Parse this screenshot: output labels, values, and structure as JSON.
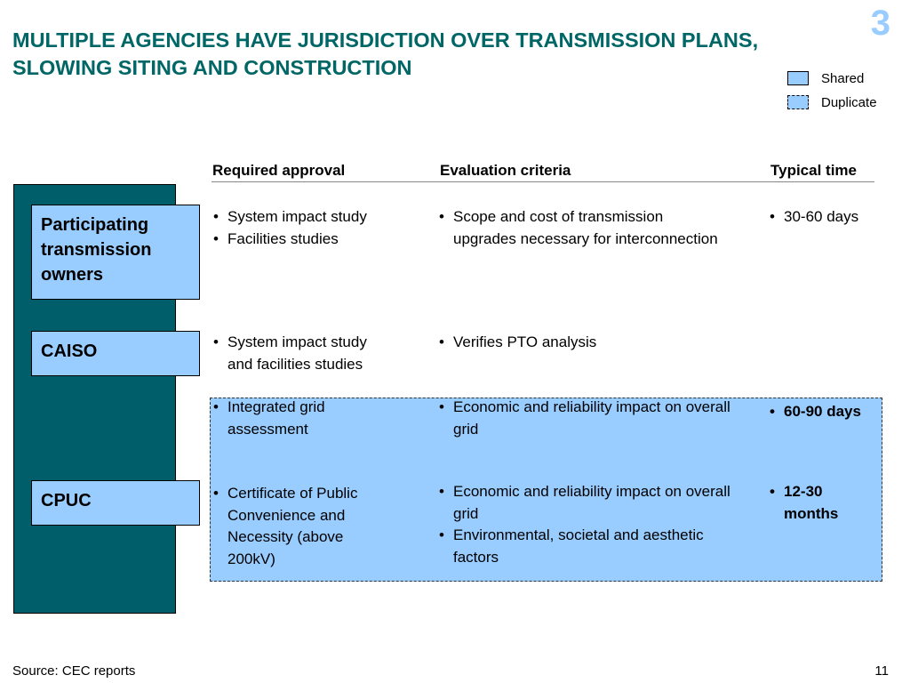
{
  "slide": {
    "title": "MULTIPLE AGENCIES HAVE JURISDICTION OVER TRANSMISSION PLANS, SLOWING SITING AND CONSTRUCTION",
    "number_badge": "3",
    "source": "Source: CEC reports",
    "page_number": "11"
  },
  "legend": {
    "shared_label": "Shared",
    "duplicate_label": "Duplicate",
    "color": "#99ccff"
  },
  "columns": {
    "required_approval": "Required approval",
    "evaluation_criteria": "Evaluation criteria",
    "typical_time": "Typical time"
  },
  "agencies": {
    "pto": "Participating transmission owners",
    "caiso": "CAISO",
    "cpuc": "CPUC"
  },
  "rows": {
    "pto": {
      "approval": [
        "System impact study",
        "Facilities studies"
      ],
      "criteria": [
        "Scope and cost of transmission upgrades necessary for interconnection"
      ],
      "time": [
        "30-60 days"
      ]
    },
    "caiso_a": {
      "approval": [
        "System impact study and facilities studies"
      ],
      "criteria": [
        "Verifies PTO analysis"
      ]
    },
    "caiso_b": {
      "approval": [
        "Integrated grid assessment"
      ],
      "criteria": [
        "Economic and reliability impact on overall grid"
      ],
      "time": [
        "60-90 days"
      ]
    },
    "cpuc": {
      "approval": [
        "Certificate of Public Convenience and Necessity (above 200kV)"
      ],
      "criteria": [
        "Economic and reliability impact on overall grid",
        "Environmental, societal and aesthetic factors"
      ],
      "time": [
        "12-30 months"
      ]
    }
  },
  "colors": {
    "title": "#006666",
    "bar": "#005e6a",
    "box": "#99ccff"
  }
}
